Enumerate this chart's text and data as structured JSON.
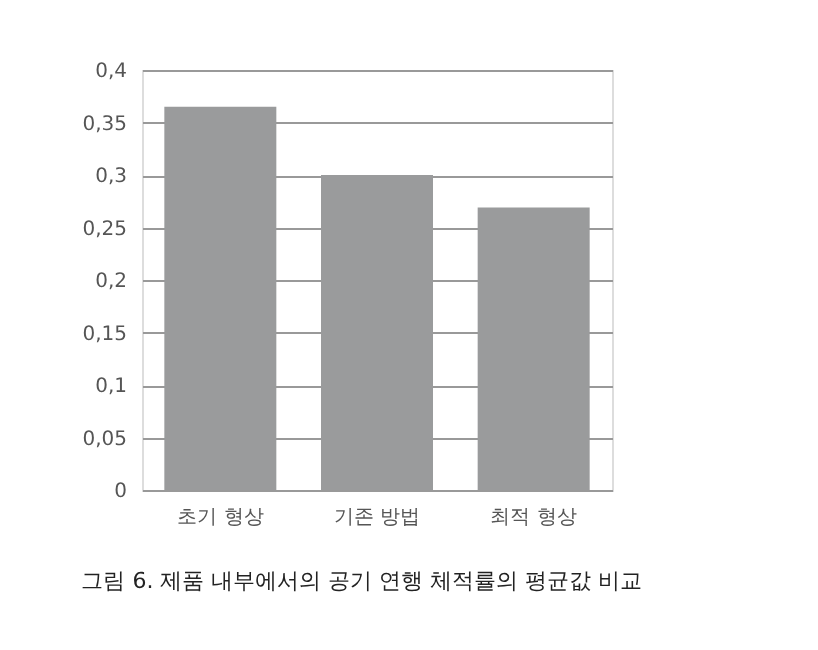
{
  "chart_data": {
    "type": "bar",
    "categories": [
      "초기 형상",
      "기존 방법",
      "최적 형상"
    ],
    "values": [
      0.365,
      0.3,
      0.269
    ],
    "color": "#9a9b9c",
    "ylim": [
      0,
      0.4
    ],
    "yticks": [
      {
        "value": 0,
        "label": "0"
      },
      {
        "value": 0.05,
        "label": "0,05"
      },
      {
        "value": 0.1,
        "label": "0,1"
      },
      {
        "value": 0.15,
        "label": "0,15"
      },
      {
        "value": 0.2,
        "label": "0,2"
      },
      {
        "value": 0.25,
        "label": "0,25"
      },
      {
        "value": 0.3,
        "label": "0,3"
      },
      {
        "value": 0.35,
        "label": "0,35"
      },
      {
        "value": 0.4,
        "label": "0,4"
      }
    ],
    "grid": "y",
    "annotations": [
      "그림 6. 제품 내부에서의 공기 연행 체적률의 평균값 비교"
    ]
  }
}
